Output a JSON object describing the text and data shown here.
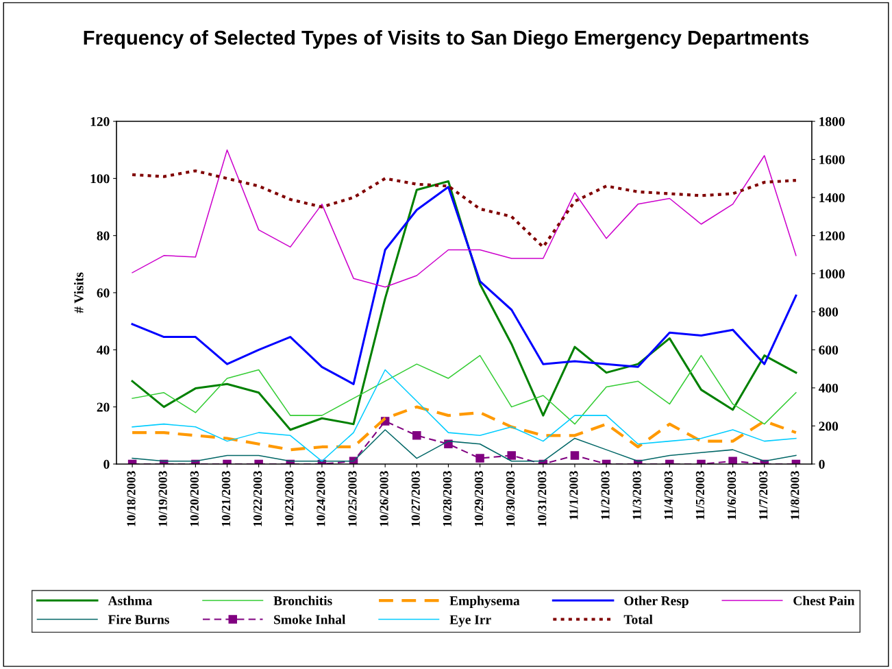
{
  "chart_data": {
    "type": "line",
    "title": "Frequency of Selected Types of Visits to San Diego Emergency Departments",
    "ylabel": "# Visits",
    "categories": [
      "10/18/2003",
      "10/19/2003",
      "10/20/2003",
      "10/21/2003",
      "10/22/2003",
      "10/23/2003",
      "10/24/2003",
      "10/25/2003",
      "10/26/2003",
      "10/27/2003",
      "10/28/2003",
      "10/29/2003",
      "10/30/2003",
      "10/31/2003",
      "11/1/2003",
      "11/2/2003",
      "11/3/2003",
      "11/4/2003",
      "11/5/2003",
      "11/6/2003",
      "11/7/2003",
      "11/8/2003"
    ],
    "ylim": [
      0,
      120
    ],
    "yticks": [
      0,
      20,
      40,
      60,
      80,
      100,
      120
    ],
    "y2lim": [
      0,
      1800
    ],
    "y2ticks": [
      0,
      200,
      400,
      600,
      800,
      1000,
      1200,
      1400,
      1600,
      1800
    ],
    "grid": false,
    "legend": "bottom",
    "series": [
      {
        "name": "Asthma",
        "color": "#008000",
        "line_style": "solid",
        "values": [
          29,
          20,
          26.5,
          28,
          25,
          12,
          16,
          14,
          58,
          96,
          99,
          63,
          42,
          17,
          41,
          32,
          35,
          44,
          26,
          19,
          38,
          32
        ]
      },
      {
        "name": "Bronchitis",
        "color": "#33cc33",
        "line_style": "solid",
        "values": [
          23,
          25,
          18,
          30,
          33,
          17,
          17,
          23,
          29,
          35,
          30,
          38,
          20,
          24,
          14,
          27,
          29,
          21,
          38,
          21,
          14,
          25
        ]
      },
      {
        "name": "Emphysema",
        "color": "#ff9900",
        "line_style": "dashed",
        "values": [
          11,
          11,
          10,
          9,
          7,
          5,
          6,
          6,
          16,
          20,
          17,
          18,
          13,
          10,
          10,
          14,
          6,
          14,
          8,
          8,
          15,
          11
        ]
      },
      {
        "name": "Other Resp",
        "color": "#0000ff",
        "line_style": "solid",
        "values": [
          49,
          44.5,
          44.5,
          35,
          40,
          44.5,
          34,
          28,
          75,
          89,
          97,
          64,
          54,
          35,
          36,
          35,
          34,
          46,
          45,
          47,
          35,
          59
        ]
      },
      {
        "name": "Chest Pain",
        "color": "#cc00cc",
        "line_style": "solid",
        "values": [
          67,
          73,
          72.5,
          110,
          82,
          76,
          91,
          65,
          62,
          66,
          75,
          75,
          72,
          72,
          95,
          79,
          91,
          93,
          84,
          91,
          108,
          73
        ]
      },
      {
        "name": "Fire Burns",
        "color": "#006666",
        "line_style": "solid",
        "values": [
          2,
          1,
          1,
          3,
          3,
          1,
          1,
          1,
          12,
          2,
          8,
          7,
          1,
          1,
          9,
          5,
          1,
          3,
          4,
          5,
          1,
          3
        ]
      },
      {
        "name": "Smoke Inhal",
        "color": "#800080",
        "line_style": "dashed",
        "marker": "square",
        "values": [
          0,
          0,
          0,
          0,
          0,
          0,
          0,
          1,
          15,
          10,
          7,
          2,
          3,
          0,
          3,
          0,
          0,
          0,
          0,
          1,
          0,
          0
        ]
      },
      {
        "name": "Eye Irr",
        "color": "#00ccff",
        "line_style": "solid",
        "values": [
          13,
          14,
          13,
          8,
          11,
          10,
          1,
          11,
          33,
          22,
          11,
          10,
          13,
          8,
          17,
          17,
          7,
          8,
          9,
          12,
          8,
          9
        ]
      },
      {
        "name": "Total",
        "color": "#800000",
        "line_style": "dotted",
        "axis": "y2",
        "values": [
          1520,
          1510,
          1540,
          1500,
          1460,
          1390,
          1350,
          1400,
          1500,
          1470,
          1460,
          1340,
          1300,
          1140,
          1380,
          1460,
          1430,
          1420,
          1410,
          1420,
          1480,
          1490
        ]
      }
    ]
  }
}
